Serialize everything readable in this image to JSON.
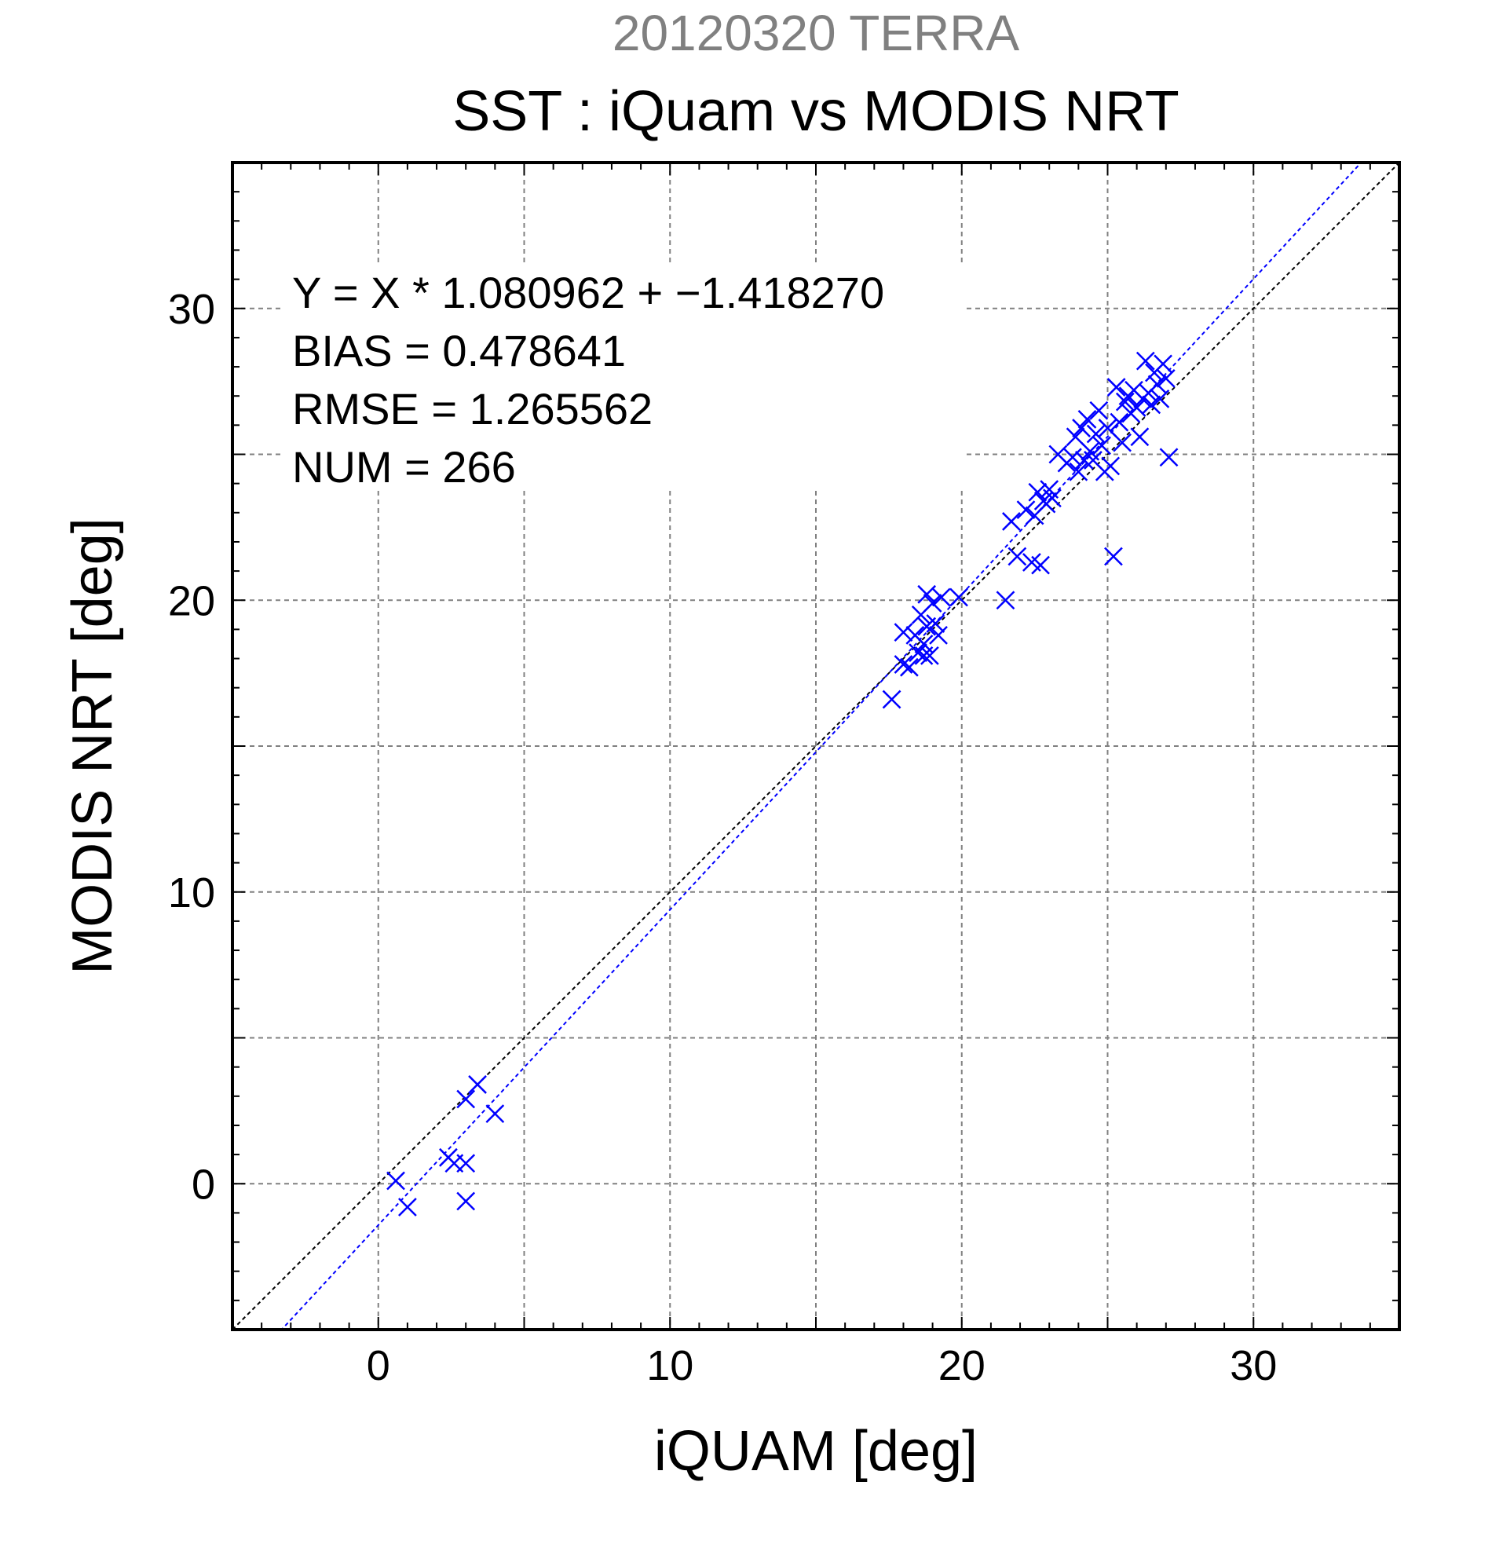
{
  "chart_data": {
    "type": "scatter",
    "title": "SST : iQuam vs MODIS NRT",
    "subtitle": "20120320 TERRA",
    "xlabel": "iQUAM [deg]",
    "ylabel": "MODIS NRT [deg]",
    "xlim": [
      -5,
      35
    ],
    "ylim": [
      -5,
      35
    ],
    "xticks": [
      0,
      10,
      20,
      30
    ],
    "yticks": [
      0,
      10,
      20,
      30
    ],
    "grid": true,
    "colors": {
      "points": "#0000ff",
      "fit_line": "#0000ff",
      "identity_line": "#000000",
      "subtitle": "#808080",
      "grid": "#808080"
    },
    "stats": [
      "Y = X * 1.080962 + −1.418270",
      "BIAS = 0.478641",
      "RMSE = 1.265562",
      "NUM = 266"
    ],
    "fit": {
      "slope": 1.080962,
      "intercept": -1.41827
    },
    "series": [
      {
        "marker": "x",
        "points": [
          [
            0.6,
            0.1
          ],
          [
            1.0,
            -0.8
          ],
          [
            2.4,
            0.9
          ],
          [
            2.6,
            0.7
          ],
          [
            3.0,
            0.7
          ],
          [
            3.0,
            -0.6
          ],
          [
            3.0,
            2.9
          ],
          [
            3.4,
            3.4
          ],
          [
            4.0,
            2.4
          ],
          [
            17.6,
            16.6
          ],
          [
            18.0,
            18.9
          ],
          [
            18.0,
            17.8
          ],
          [
            18.2,
            17.7
          ],
          [
            18.4,
            18.8
          ],
          [
            18.5,
            18.2
          ],
          [
            18.6,
            19.5
          ],
          [
            18.7,
            18.5
          ],
          [
            18.7,
            18.1
          ],
          [
            18.8,
            20.2
          ],
          [
            18.8,
            19.1
          ],
          [
            18.9,
            18.1
          ],
          [
            19.0,
            19.9
          ],
          [
            19.1,
            19.2
          ],
          [
            19.2,
            18.8
          ],
          [
            19.3,
            20.1
          ],
          [
            19.9,
            20.1
          ],
          [
            21.5,
            20.0
          ],
          [
            21.7,
            22.7
          ],
          [
            21.9,
            21.5
          ],
          [
            22.2,
            23.1
          ],
          [
            22.4,
            21.3
          ],
          [
            22.5,
            22.9
          ],
          [
            22.6,
            23.7
          ],
          [
            22.7,
            21.2
          ],
          [
            22.8,
            23.4
          ],
          [
            22.9,
            23.3
          ],
          [
            23.0,
            23.8
          ],
          [
            23.1,
            23.5
          ],
          [
            23.3,
            25.0
          ],
          [
            23.6,
            24.7
          ],
          [
            23.8,
            24.9
          ],
          [
            23.9,
            25.6
          ],
          [
            24.0,
            24.4
          ],
          [
            24.1,
            25.9
          ],
          [
            24.2,
            24.8
          ],
          [
            24.3,
            26.2
          ],
          [
            24.4,
            25.1
          ],
          [
            24.5,
            24.8
          ],
          [
            24.6,
            25.7
          ],
          [
            24.7,
            26.5
          ],
          [
            24.8,
            25.3
          ],
          [
            24.9,
            24.4
          ],
          [
            25.0,
            25.9
          ],
          [
            25.1,
            24.6
          ],
          [
            25.2,
            21.5
          ],
          [
            25.3,
            27.3
          ],
          [
            25.4,
            26.1
          ],
          [
            25.5,
            25.4
          ],
          [
            25.6,
            26.8
          ],
          [
            25.7,
            27.0
          ],
          [
            25.8,
            26.4
          ],
          [
            25.9,
            27.2
          ],
          [
            26.0,
            26.6
          ],
          [
            26.1,
            25.6
          ],
          [
            26.2,
            26.9
          ],
          [
            26.3,
            28.2
          ],
          [
            26.4,
            27.1
          ],
          [
            26.5,
            26.7
          ],
          [
            26.6,
            27.8
          ],
          [
            26.7,
            27.4
          ],
          [
            26.8,
            26.9
          ],
          [
            26.9,
            28.1
          ],
          [
            27.0,
            27.6
          ],
          [
            27.1,
            24.9
          ]
        ]
      }
    ]
  }
}
